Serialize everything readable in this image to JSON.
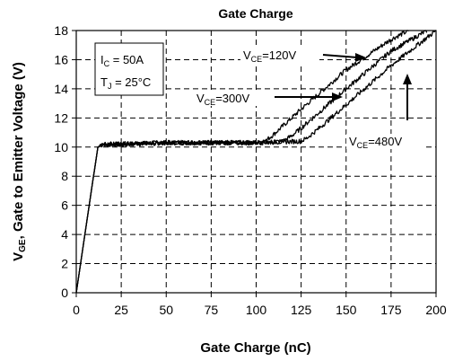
{
  "chart_data": {
    "type": "line",
    "title": "Gate Charge",
    "xlabel": "Gate Charge (nC)",
    "ylabel": {
      "prefix": "V",
      "sub": "GE",
      "rest": ", Gate to Emitter Voltage (V)"
    },
    "xlim": [
      0,
      200
    ],
    "ylim": [
      0,
      18
    ],
    "xticks": [
      0,
      25,
      50,
      75,
      100,
      125,
      150,
      175,
      200
    ],
    "yticks": [
      0,
      2,
      4,
      6,
      8,
      10,
      12,
      14,
      16,
      18
    ],
    "grid": true,
    "conditions": [
      {
        "main": "I",
        "sub": "C",
        "rest": " = 50A"
      },
      {
        "main": "T",
        "sub": "J",
        "rest": " = 25°C"
      }
    ],
    "series": [
      {
        "name": "VCE=120V",
        "label": {
          "main": "V",
          "sub": "CE",
          "rest": "=120V"
        },
        "x": [
          0,
          12,
          15,
          25,
          50,
          75,
          100,
          105,
          110,
          125,
          150,
          175,
          185
        ],
        "y": [
          0,
          10,
          10.2,
          10.2,
          10.3,
          10.3,
          10.3,
          10.4,
          10.9,
          12.6,
          15.3,
          17.4,
          18
        ]
      },
      {
        "name": "VCE=300V",
        "label": {
          "main": "V",
          "sub": "CE",
          "rest": "=300V"
        },
        "x": [
          0,
          12,
          15,
          25,
          50,
          75,
          100,
          115,
          120,
          125,
          150,
          175,
          195
        ],
        "y": [
          0,
          10,
          10.2,
          10.2,
          10.3,
          10.3,
          10.3,
          10.4,
          10.8,
          11.3,
          14.0,
          16.6,
          18
        ]
      },
      {
        "name": "VCE=480V",
        "label": {
          "main": "V",
          "sub": "CE",
          "rest": "=480V"
        },
        "x": [
          0,
          12,
          15,
          25,
          50,
          75,
          100,
          125,
          128,
          135,
          150,
          175,
          200
        ],
        "y": [
          0,
          10,
          10.2,
          10.2,
          10.3,
          10.3,
          10.3,
          10.4,
          10.6,
          11.3,
          12.9,
          15.6,
          18.0
        ]
      }
    ],
    "colors": {
      "line": "#000000",
      "background": "#ffffff"
    }
  }
}
